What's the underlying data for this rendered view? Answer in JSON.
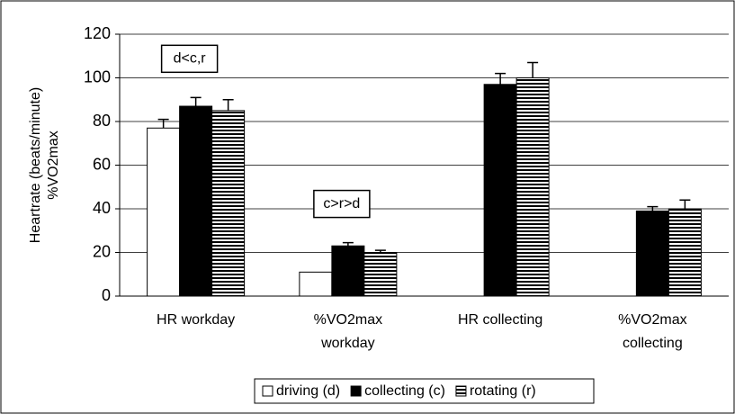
{
  "chart_data": {
    "type": "bar",
    "ylabel": [
      "Heartrate (beats/minute)",
      "%VO2max"
    ],
    "categories": [
      [
        "HR workday"
      ],
      [
        "%VO2max",
        "workday"
      ],
      [
        "HR collecting"
      ],
      [
        "%VO2max",
        "collecting"
      ]
    ],
    "series": [
      {
        "name": "driving (d)",
        "color": "#ffffff",
        "pattern": "solid",
        "values": [
          77,
          11,
          null,
          null
        ],
        "errors": [
          4,
          null,
          null,
          null
        ]
      },
      {
        "name": "collecting (c)",
        "color": "#000000",
        "pattern": "solid",
        "values": [
          87,
          23,
          97,
          39
        ],
        "errors": [
          4,
          1.5,
          5,
          2
        ]
      },
      {
        "name": "rotating (r)",
        "color": "#000000",
        "pattern": "horizontal-lines",
        "values": [
          85,
          20,
          100,
          40
        ],
        "errors": [
          5,
          1,
          7,
          4
        ]
      }
    ],
    "annotations": [
      {
        "text": "d<c,r",
        "category": 0
      },
      {
        "text": "c>r>d",
        "category": 1
      }
    ],
    "ylim": [
      0,
      120
    ],
    "yticks": [
      0,
      20,
      40,
      60,
      80,
      100,
      120
    ],
    "grid": true,
    "legend": "bottom"
  }
}
